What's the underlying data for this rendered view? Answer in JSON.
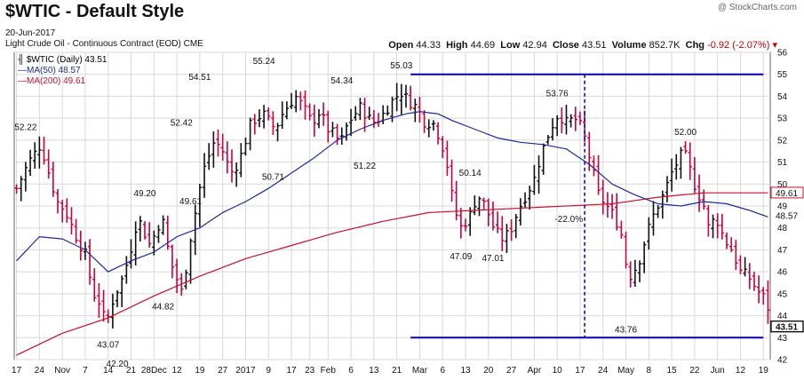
{
  "header": {
    "title": "$WTIC - Default Style",
    "credit": "@ StockCharts.com",
    "subtitle": "Light Crude Oil - Continuous Contract (EOD)",
    "exchange": "CME",
    "date": "20-Jun-2017",
    "ohlc": {
      "open_label": "Open",
      "open": "44.33",
      "high_label": "High",
      "high": "44.69",
      "low_label": "Low",
      "low": "42.94",
      "close_label": "Close",
      "close": "43.51",
      "volume_label": "Volume",
      "volume": "852.7K",
      "chg_label": "Chg",
      "chg": "-0.92 (-2.07%)"
    }
  },
  "legend": {
    "price": "$WTIC (Daily) 43.51",
    "ma50": "MA(50) 48.57",
    "ma200": "MA(200) 49.61"
  },
  "colors": {
    "up": "#111111",
    "down": "#c8003c",
    "ma50": "#1a2a9c",
    "ma200": "#c8102e",
    "guide": "#0000cc",
    "grid": "#d8d8d8"
  },
  "chart_data": {
    "type": "ohlc",
    "ylim": [
      42,
      56
    ],
    "y_ticks": [
      42,
      43,
      44,
      45,
      46,
      47,
      48,
      49,
      50,
      51,
      52,
      53,
      54,
      55,
      56
    ],
    "x_tick_labels": [
      "17",
      "24",
      "Nov",
      "7",
      "14",
      "21",
      "28Dec",
      "12",
      "19",
      "27",
      "2017",
      "9",
      "17",
      "23",
      "Feb",
      "6",
      "13",
      "21",
      "Mar",
      "6",
      "13",
      "20",
      "27",
      "Apr",
      "10",
      "17",
      "24",
      "May",
      "8",
      "15",
      "22",
      "Jun",
      "12",
      "19"
    ],
    "x_tick_positions": [
      0,
      5,
      10,
      15,
      20,
      25,
      30,
      35,
      40,
      45,
      50,
      55,
      60,
      64,
      68,
      73,
      78,
      83,
      88,
      93,
      98,
      103,
      108,
      113,
      118,
      123,
      128,
      133,
      138,
      143,
      148,
      153,
      158,
      163
    ],
    "n_bars": 165,
    "anchors": [
      [
        0,
        49.8
      ],
      [
        3,
        51.0
      ],
      [
        6,
        51.8
      ],
      [
        8,
        50.5
      ],
      [
        10,
        49.2
      ],
      [
        12,
        48.8
      ],
      [
        15,
        47.5
      ],
      [
        17,
        46.8
      ],
      [
        19,
        45.0
      ],
      [
        21,
        44.5
      ],
      [
        22,
        43.5
      ],
      [
        24,
        44.8
      ],
      [
        26,
        45.6
      ],
      [
        28,
        46.8
      ],
      [
        30,
        48.5
      ],
      [
        33,
        47.2
      ],
      [
        36,
        48.5
      ],
      [
        38,
        46.5
      ],
      [
        40,
        45.5
      ],
      [
        41,
        45.0
      ],
      [
        43,
        47.5
      ],
      [
        46,
        50.5
      ],
      [
        49,
        52.0
      ],
      [
        51,
        51.5
      ],
      [
        53,
        50.5
      ],
      [
        55,
        51.0
      ],
      [
        58,
        52.8
      ],
      [
        61,
        53.2
      ],
      [
        64,
        52.5
      ],
      [
        66,
        53.3
      ],
      [
        69,
        54.0
      ],
      [
        71,
        53.5
      ],
      [
        73,
        52.8
      ],
      [
        75,
        53.3
      ],
      [
        77,
        52.5
      ],
      [
        79,
        52.2
      ],
      [
        80,
        51.8
      ],
      [
        82,
        52.8
      ],
      [
        85,
        53.5
      ],
      [
        88,
        52.8
      ],
      [
        90,
        53.0
      ],
      [
        93,
        53.8
      ],
      [
        95,
        54.2
      ],
      [
        97,
        53.8
      ],
      [
        99,
        53.5
      ],
      [
        101,
        52.8
      ],
      [
        103,
        52.8
      ],
      [
        105,
        52.0
      ],
      [
        107,
        50.5
      ],
      [
        108,
        49.0
      ],
      [
        110,
        48.0
      ],
      [
        112,
        48.5
      ],
      [
        114,
        49.5
      ],
      [
        116,
        49.0
      ],
      [
        118,
        48.0
      ],
      [
        120,
        47.5
      ],
      [
        122,
        47.8
      ],
      [
        124,
        48.8
      ],
      [
        126,
        49.5
      ],
      [
        128,
        50.2
      ],
      [
        130,
        51.5
      ],
      [
        132,
        52.5
      ],
      [
        134,
        53.2
      ],
      [
        136,
        52.8
      ],
      [
        138,
        53.0
      ],
      [
        140,
        52.5
      ],
      [
        142,
        51.0
      ],
      [
        144,
        49.5
      ],
      [
        146,
        49.0
      ],
      [
        148,
        48.5
      ],
      [
        150,
        47.5
      ],
      [
        151,
        46.0
      ],
      [
        152,
        45.8
      ],
      [
        154,
        46.5
      ],
      [
        156,
        47.8
      ],
      [
        158,
        48.8
      ],
      [
        160,
        49.5
      ],
      [
        162,
        50.5
      ],
      [
        164,
        51.2
      ],
      [
        165,
        51.5
      ],
      [
        166,
        51.0
      ],
      [
        168,
        49.8
      ],
      [
        170,
        49.0
      ],
      [
        171,
        48.0
      ],
      [
        173,
        48.5
      ],
      [
        175,
        47.5
      ],
      [
        177,
        47.0
      ],
      [
        178,
        46.5
      ],
      [
        179,
        46.0
      ],
      [
        181,
        45.8
      ],
      [
        183,
        45.2
      ],
      [
        185,
        44.8
      ],
      [
        186,
        44.3
      ],
      [
        187,
        43.5
      ]
    ],
    "anchor_scale": 0.8824,
    "price_labels": [
      {
        "bar": 2,
        "value": 52.22,
        "pos": "above"
      },
      {
        "bar": 20,
        "value": 43.07,
        "pos": "below"
      },
      {
        "bar": 22,
        "value": 42.2,
        "pos": "below"
      },
      {
        "bar": 28,
        "value": 49.2,
        "pos": "above"
      },
      {
        "bar": 32,
        "value": 44.82,
        "pos": "below"
      },
      {
        "bar": 36,
        "value": 52.42,
        "pos": "above"
      },
      {
        "bar": 38,
        "value": 49.61,
        "pos": "below"
      },
      {
        "bar": 40,
        "value": 54.51,
        "pos": "above"
      },
      {
        "bar": 54,
        "value": 55.24,
        "pos": "above"
      },
      {
        "bar": 56,
        "value": 50.71,
        "pos": "below"
      },
      {
        "bar": 71,
        "value": 54.34,
        "pos": "above"
      },
      {
        "bar": 76,
        "value": 51.22,
        "pos": "below"
      },
      {
        "bar": 84,
        "value": 55.03,
        "pos": "above"
      },
      {
        "bar": 97,
        "value": 47.09,
        "pos": "below"
      },
      {
        "bar": 99,
        "value": 50.14,
        "pos": "above"
      },
      {
        "bar": 104,
        "value": 47.01,
        "pos": "below"
      },
      {
        "bar": 118,
        "value": 53.76,
        "pos": "above"
      },
      {
        "bar": 133,
        "value": 43.76,
        "pos": "below"
      },
      {
        "bar": 146,
        "value": 52.0,
        "pos": "above"
      }
    ],
    "guides": {
      "top_line": {
        "value": 55.0,
        "from_bar": 86,
        "to_bar": 163
      },
      "bottom_line": {
        "value": 43.0,
        "from_bar": 86,
        "to_bar": 163
      },
      "drop_label": "-22.0%",
      "drop_bar": 124
    },
    "ma50": [
      [
        0,
        46.5
      ],
      [
        5,
        47.6
      ],
      [
        10,
        47.5
      ],
      [
        15,
        47.0
      ],
      [
        20,
        46.0
      ],
      [
        25,
        46.5
      ],
      [
        30,
        46.9
      ],
      [
        35,
        47.6
      ],
      [
        40,
        48.0
      ],
      [
        45,
        48.7
      ],
      [
        50,
        49.2
      ],
      [
        55,
        49.8
      ],
      [
        60,
        50.5
      ],
      [
        65,
        51.2
      ],
      [
        70,
        52.0
      ],
      [
        75,
        52.5
      ],
      [
        80,
        52.9
      ],
      [
        85,
        53.2
      ],
      [
        88,
        53.3
      ],
      [
        92,
        53.2
      ],
      [
        95,
        52.9
      ],
      [
        100,
        52.5
      ],
      [
        105,
        52.1
      ],
      [
        110,
        51.9
      ],
      [
        115,
        51.8
      ],
      [
        120,
        51.6
      ],
      [
        125,
        50.9
      ],
      [
        130,
        50.0
      ],
      [
        135,
        49.5
      ],
      [
        140,
        49.1
      ],
      [
        145,
        49.0
      ],
      [
        150,
        49.2
      ],
      [
        155,
        49.1
      ],
      [
        160,
        48.8
      ],
      [
        164,
        48.5
      ]
    ],
    "ma200": [
      [
        0,
        42.2
      ],
      [
        10,
        43.2
      ],
      [
        20,
        43.9
      ],
      [
        30,
        44.9
      ],
      [
        40,
        45.8
      ],
      [
        50,
        46.6
      ],
      [
        60,
        47.2
      ],
      [
        70,
        47.8
      ],
      [
        80,
        48.3
      ],
      [
        90,
        48.7
      ],
      [
        100,
        48.8
      ],
      [
        110,
        48.9
      ],
      [
        120,
        49.0
      ],
      [
        130,
        49.1
      ],
      [
        140,
        49.4
      ],
      [
        150,
        49.6
      ],
      [
        160,
        49.6
      ],
      [
        164,
        49.6
      ]
    ],
    "right_labels": [
      {
        "value": 49.61,
        "text": "49.61",
        "style": "ma200"
      },
      {
        "value": 48.57,
        "text": "48.57",
        "style": "plain"
      },
      {
        "value": 43.51,
        "text": "43.51",
        "style": "last"
      }
    ]
  }
}
